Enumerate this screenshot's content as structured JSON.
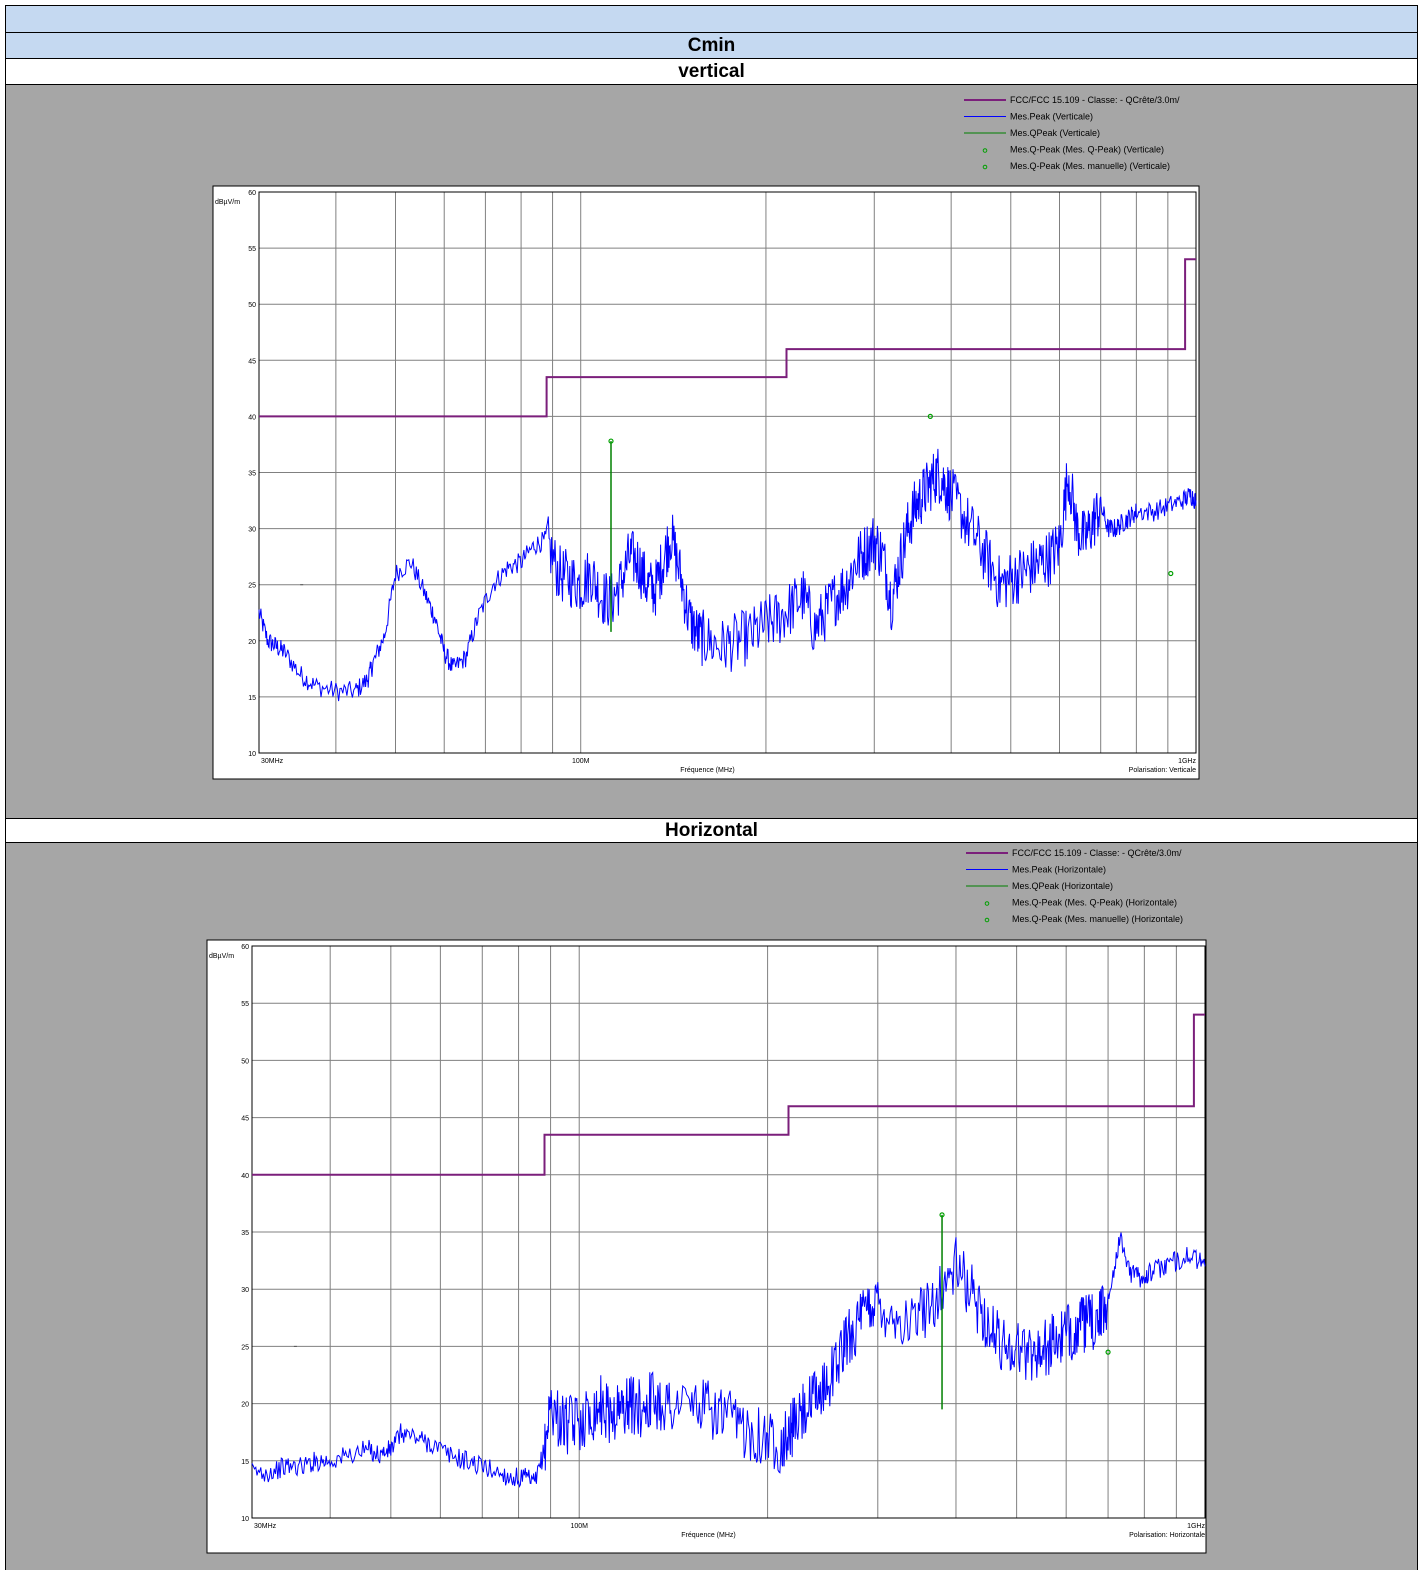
{
  "header": {
    "title": "Cmin",
    "sections": [
      "vertical",
      "Horizontal"
    ]
  },
  "colors": {
    "limit": "#7b1f7b",
    "peak": "#0000ff",
    "qpeak": "#008000",
    "marker": "#00a000",
    "panel_bg": "#a6a6a6",
    "header_bg": "#c5d9f1"
  },
  "chart_data": [
    {
      "type": "line",
      "title": "vertical",
      "xlabel": "Fréquence (MHz)",
      "ylabel": "dBµV/m",
      "x_scale": "log",
      "xlim": [
        30,
        1000
      ],
      "ylim": [
        10,
        60
      ],
      "yticks": [
        10,
        15,
        20,
        25,
        30,
        35,
        40,
        45,
        50,
        55,
        60
      ],
      "xtick_labels": [
        "30MHz",
        "100M",
        "1GHz"
      ],
      "polarisation_label": "Polarisation: Verticale",
      "legend_position": "top-right",
      "legend": [
        "FCC/FCC 15.109 - Classe: - QCrête/3.0m/",
        "Mes.Peak (Verticale)",
        "Mes.QPeak (Verticale)",
        "Mes.Q-Peak (Mes. Q-Peak) (Verticale)",
        "Mes.Q-Peak (Mes. manuelle) (Verticale)"
      ],
      "limit_line": {
        "x": [
          30,
          88,
          88,
          216,
          216,
          960,
          960,
          1000
        ],
        "y": [
          40,
          40,
          43.5,
          43.5,
          46,
          46,
          54,
          54
        ]
      },
      "peak_series": {
        "x": [
          30,
          31,
          32,
          33,
          35,
          37,
          40,
          43,
          45,
          46,
          48,
          50,
          53,
          56,
          58,
          60,
          62,
          65,
          68,
          72,
          76,
          80,
          84,
          88,
          92,
          96,
          100,
          104,
          108,
          112,
          116,
          120,
          124,
          128,
          132,
          136,
          140,
          145,
          150,
          155,
          160,
          170,
          180,
          190,
          200,
          210,
          220,
          230,
          240,
          250,
          260,
          270,
          280,
          290,
          300,
          310,
          320,
          330,
          340,
          350,
          360,
          370,
          380,
          390,
          400,
          420,
          440,
          460,
          480,
          500,
          520,
          540,
          560,
          580,
          600,
          620,
          640,
          660,
          680,
          700,
          720,
          740,
          760,
          780,
          800,
          850,
          900,
          950,
          980,
          1000
        ],
        "y": [
          22.5,
          20,
          19.5,
          19,
          17,
          16,
          15.5,
          15.5,
          16.5,
          18,
          20.5,
          26,
          27,
          24,
          22,
          19,
          17.5,
          18.5,
          22,
          25,
          26.5,
          27,
          28.5,
          29,
          26,
          25.5,
          25,
          26,
          24,
          23.5,
          25,
          27.5,
          27,
          25,
          24.5,
          27,
          29.5,
          26,
          22,
          20.5,
          20,
          19.5,
          20,
          20.5,
          21.5,
          22,
          23,
          24,
          21,
          22.5,
          24,
          25,
          27,
          28,
          29,
          27.5,
          23.5,
          27,
          30,
          32,
          33,
          34,
          35,
          34,
          33,
          31,
          29,
          27,
          25,
          25.5,
          26,
          26.5,
          27,
          27.5,
          28.5,
          35,
          30,
          29,
          30.5,
          32,
          30,
          30,
          30.5,
          31,
          31.5,
          31.5,
          32,
          32.5,
          33,
          32.5
        ]
      },
      "qpeak_markers": [
        {
          "x": 112,
          "y": 37.8
        },
        {
          "x": 370,
          "y": 40
        },
        {
          "x": 910,
          "y": 26
        }
      ]
    },
    {
      "type": "line",
      "title": "Horizontal",
      "xlabel": "Fréquence (MHz)",
      "ylabel": "dBµV/m",
      "x_scale": "log",
      "xlim": [
        30,
        1000
      ],
      "ylim": [
        10,
        60
      ],
      "yticks": [
        10,
        15,
        20,
        25,
        30,
        35,
        40,
        45,
        50,
        55,
        60
      ],
      "xtick_labels": [
        "30MHz",
        "100M",
        "1GHz"
      ],
      "polarisation_label": "Polarisation: Horizontale",
      "legend_position": "top-right",
      "legend": [
        "FCC/FCC 15.109 - Classe: - QCrête/3.0m/",
        "Mes.Peak (Horizontale)",
        "Mes.QPeak (Horizontale)",
        "Mes.Q-Peak (Mes. Q-Peak) (Horizontale)",
        "Mes.Q-Peak (Mes. manuelle) (Horizontale)"
      ],
      "limit_line": {
        "x": [
          30,
          88,
          88,
          216,
          216,
          960,
          960,
          1000
        ],
        "y": [
          40,
          40,
          43.5,
          43.5,
          46,
          46,
          54,
          54
        ]
      },
      "peak_series": {
        "x": [
          30,
          32,
          34,
          36,
          38,
          40,
          43,
          46,
          48,
          50,
          52,
          55,
          58,
          62,
          66,
          70,
          74,
          78,
          82,
          85,
          88,
          90,
          93,
          96,
          100,
          104,
          108,
          112,
          116,
          120,
          125,
          130,
          135,
          140,
          150,
          160,
          170,
          180,
          190,
          200,
          210,
          215,
          220,
          230,
          240,
          250,
          260,
          270,
          280,
          290,
          300,
          320,
          340,
          360,
          380,
          400,
          420,
          440,
          460,
          480,
          500,
          520,
          540,
          560,
          580,
          600,
          620,
          640,
          660,
          680,
          700,
          730,
          760,
          790,
          820,
          860,
          900,
          950,
          1000
        ],
        "y": [
          14,
          14,
          14.5,
          14.5,
          15,
          15,
          15.5,
          16,
          15.5,
          16,
          17.5,
          17,
          16.5,
          15.5,
          15,
          14.5,
          14,
          13.5,
          13.5,
          13,
          16,
          20,
          18.5,
          18,
          18.5,
          19,
          20,
          19,
          19.5,
          20,
          19.5,
          20.5,
          20,
          20,
          20,
          19.5,
          19,
          18,
          17.5,
          17,
          16.5,
          17,
          18,
          19.5,
          20.5,
          22,
          24,
          26,
          27,
          28.5,
          29,
          27.5,
          27,
          28.5,
          30,
          32,
          30,
          28,
          26,
          25,
          25,
          24.5,
          24.5,
          25,
          25.5,
          26,
          26.5,
          27,
          27,
          27.5,
          29,
          34.5,
          31.5,
          31,
          31.5,
          32,
          32.5,
          33,
          32
        ]
      },
      "qpeak_markers": [
        {
          "x": 380,
          "y": 36.5
        },
        {
          "x": 700,
          "y": 24.5
        }
      ]
    }
  ]
}
